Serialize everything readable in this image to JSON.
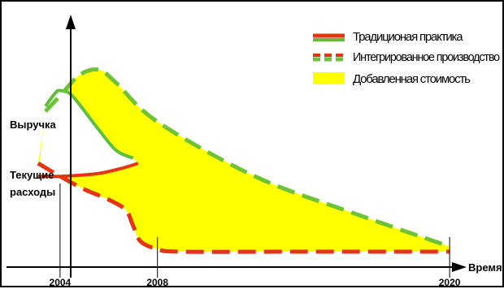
{
  "chart_data": {
    "type": "area",
    "title": "",
    "xlabel": "Время",
    "ylabel": "",
    "x_ticks": [
      "2004",
      "2008",
      "2020"
    ],
    "y_labels": [
      {
        "text": "Выручка",
        "level": "revenue"
      },
      {
        "text": "Текущие",
        "level": "costs"
      },
      {
        "text": "расходы",
        "level": "costs"
      }
    ],
    "legend": {
      "position": "top-right",
      "items": [
        {
          "label": "Традиционая практика",
          "style": "solid-line",
          "color": "#e63312"
        },
        {
          "label": "Интегрированное производство",
          "style": "dashed-line",
          "color": "#6dc23a"
        },
        {
          "label": "Добавленная стоимость",
          "style": "fill",
          "color": "#ffff00"
        }
      ]
    },
    "colors": {
      "traditional_revenue": "#5fbf3a",
      "traditional_costs": "#e63312",
      "integrated_revenue": "#6dc23a",
      "integrated_costs": "#e63312",
      "added_value": "#ffff00"
    },
    "series": [
      {
        "key": "traditional_revenue",
        "style": "solid",
        "x": [
          2003.4,
          2003.8,
          2004.0,
          2004.5,
          2005.5,
          2006.3,
          2007.0
        ],
        "y": [
          0.66,
          0.71,
          0.72,
          0.7,
          0.58,
          0.49,
          0.46
        ]
      },
      {
        "key": "traditional_costs",
        "style": "solid",
        "x": [
          2003.1,
          2004.0,
          2005.5,
          2006.5,
          2007.2
        ],
        "y": [
          0.39,
          0.39,
          0.4,
          0.42,
          0.44
        ]
      },
      {
        "key": "integrated_revenue",
        "style": "dashed",
        "x": [
          2003.4,
          2004.0,
          2004.8,
          2005.6,
          2006.3,
          2008.0,
          2012.0,
          2016.0,
          2020.0
        ],
        "y": [
          0.64,
          0.7,
          0.78,
          0.8,
          0.75,
          0.6,
          0.39,
          0.25,
          0.12
        ]
      },
      {
        "key": "integrated_costs",
        "style": "dashed",
        "x": [
          2003.1,
          2004.0,
          2005.0,
          2006.0,
          2006.7,
          2007.0,
          2007.3,
          2008.0,
          2009.0,
          2014.0,
          2020.0
        ],
        "y": [
          0.44,
          0.39,
          0.34,
          0.3,
          0.26,
          0.2,
          0.14,
          0.11,
          0.1,
          0.1,
          0.1
        ]
      }
    ],
    "xlim": [
      2001.6,
      2022.3
    ],
    "ylim": [
      0,
      1
    ],
    "grid": false
  }
}
